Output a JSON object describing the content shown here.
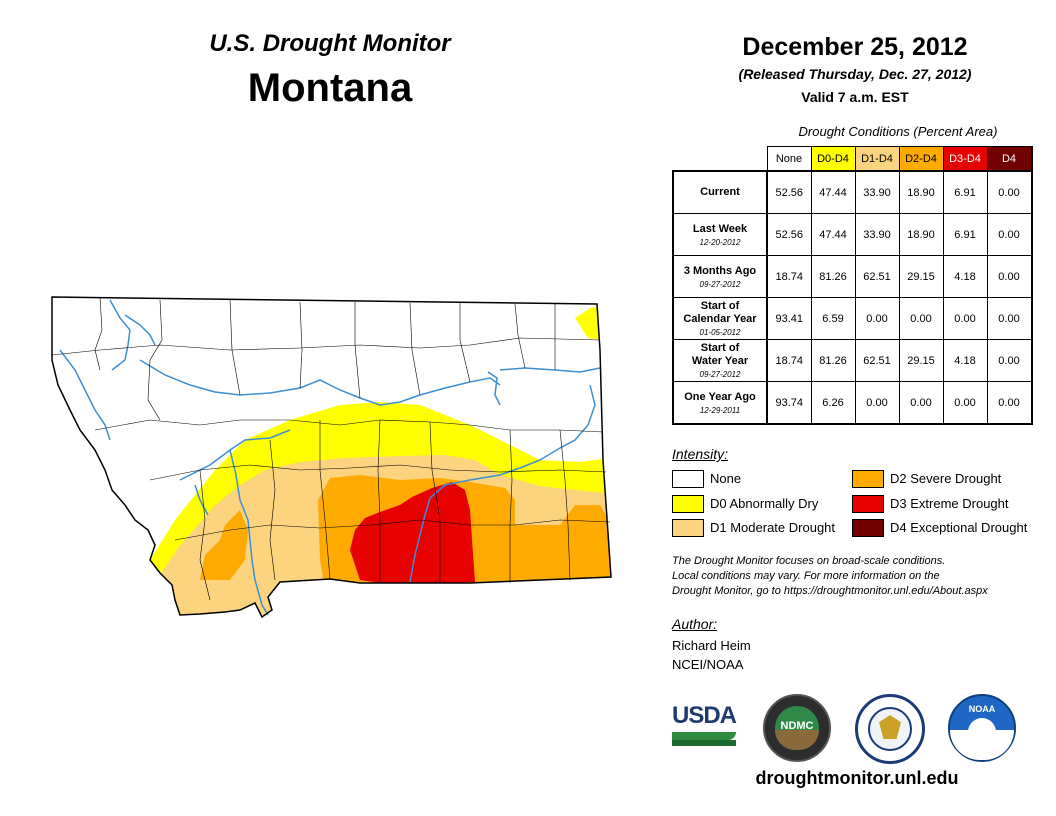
{
  "header": {
    "title": "U.S. Drought Monitor",
    "state": "Montana",
    "date": "December 25, 2012",
    "released": "(Released Thursday, Dec. 27, 2012)",
    "valid": "Valid 7 a.m. EST"
  },
  "table": {
    "caption": "Drought Conditions (Percent Area)",
    "columns": [
      {
        "label": "None",
        "color": "#ffffff",
        "text_color": "#000000"
      },
      {
        "label": "D0-D4",
        "color": "#ffff00",
        "text_color": "#000000"
      },
      {
        "label": "D1-D4",
        "color": "#fcd37f",
        "text_color": "#000000"
      },
      {
        "label": "D2-D4",
        "color": "#ffaa00",
        "text_color": "#000000"
      },
      {
        "label": "D3-D4",
        "color": "#e60000",
        "text_color": "#ffffff"
      },
      {
        "label": "D4",
        "color": "#730000",
        "text_color": "#ffffff"
      }
    ],
    "rows": [
      {
        "label": "Current",
        "date": "",
        "values": [
          "52.56",
          "47.44",
          "33.90",
          "18.90",
          "6.91",
          "0.00"
        ]
      },
      {
        "label": "Last Week",
        "date": "12-20-2012",
        "values": [
          "52.56",
          "47.44",
          "33.90",
          "18.90",
          "6.91",
          "0.00"
        ]
      },
      {
        "label": "3 Months Ago",
        "date": "09-27-2012",
        "values": [
          "18.74",
          "81.26",
          "62.51",
          "29.15",
          "4.18",
          "0.00"
        ]
      },
      {
        "label": "Start of Calendar Year",
        "date": "01-05-2012",
        "values": [
          "93.41",
          "6.59",
          "0.00",
          "0.00",
          "0.00",
          "0.00"
        ]
      },
      {
        "label": "Start of Water Year",
        "date": "09-27-2012",
        "values": [
          "18.74",
          "81.26",
          "62.51",
          "29.15",
          "4.18",
          "0.00"
        ]
      },
      {
        "label": "One Year Ago",
        "date": "12-29-2011",
        "values": [
          "93.74",
          "6.26",
          "0.00",
          "0.00",
          "0.00",
          "0.00"
        ]
      }
    ]
  },
  "legend": {
    "title": "Intensity:",
    "items": [
      {
        "label": "None",
        "color": "#ffffff"
      },
      {
        "label": "D0 Abnormally Dry",
        "color": "#ffff00"
      },
      {
        "label": "D1 Moderate Drought",
        "color": "#fcd37f"
      },
      {
        "label": "D2 Severe Drought",
        "color": "#ffaa00"
      },
      {
        "label": "D3 Extreme Drought",
        "color": "#e60000"
      },
      {
        "label": "D4 Exceptional Drought",
        "color": "#730000"
      }
    ]
  },
  "note": {
    "line1": "The Drought Monitor focuses on broad-scale conditions.",
    "line2": "Local conditions may vary. For more information on the",
    "line3": "Drought Monitor, go to https://droughtmonitor.unl.edu/About.aspx"
  },
  "author": {
    "title": "Author:",
    "name": "Richard Heim",
    "org": "NCEI/NOAA"
  },
  "logos": {
    "usda": "USDA",
    "ndmc": "NDMC",
    "noaa": "NOAA"
  },
  "footer_url": "droughtmonitor.unl.edu",
  "map_colors": {
    "d0": "#ffff00",
    "d1": "#fcd37f",
    "d2": "#ffaa00",
    "d3": "#e60000",
    "river": "#3d8fd1",
    "border": "#000000"
  }
}
